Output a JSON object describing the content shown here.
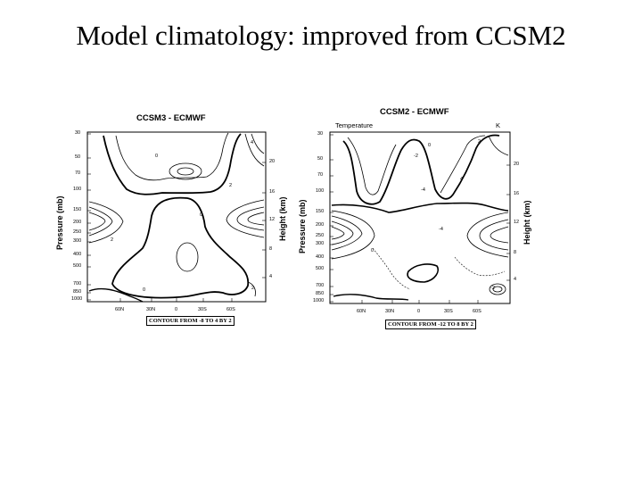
{
  "slide": {
    "title": "Model climatology: improved from CCSM2"
  },
  "panels": [
    {
      "title": "CCSM3 - ECMWF",
      "variable": "",
      "units": "",
      "y_left_label": "Pressure (mb)",
      "y_right_label": "Height (km)",
      "pressure_ticks": [
        "30",
        "50",
        "70",
        "100",
        "150",
        "200",
        "250",
        "300",
        "400",
        "500",
        "700",
        "850",
        "1000"
      ],
      "height_ticks": [
        "20",
        "16",
        "12",
        "8",
        "4"
      ],
      "lat_ticks": [
        "60N",
        "30N",
        "0",
        "30S",
        "60S"
      ],
      "contour_info": "CONTOUR FROM -8 TO 4 BY 2",
      "contour_labels": [
        "4",
        "0",
        "0",
        "2",
        "0",
        "2",
        "2"
      ]
    },
    {
      "title": "CCSM2 - ECMWF",
      "variable": "Temperature",
      "units": "K",
      "y_left_label": "Pressure (mb)",
      "y_right_label": "Height (km)",
      "pressure_ticks": [
        "30",
        "50",
        "70",
        "100",
        "150",
        "200",
        "250",
        "300",
        "400",
        "500",
        "700",
        "850",
        "1000"
      ],
      "height_ticks": [
        "20",
        "16",
        "12",
        "8",
        "4"
      ],
      "lat_ticks": [
        "60N",
        "30N",
        "0",
        "30S",
        "60S"
      ],
      "contour_info": "CONTOUR FROM -12 TO 8 BY 2",
      "contour_labels": [
        "0",
        "-2",
        "2",
        "-4",
        "4",
        "-4",
        "0",
        "-2"
      ]
    }
  ]
}
